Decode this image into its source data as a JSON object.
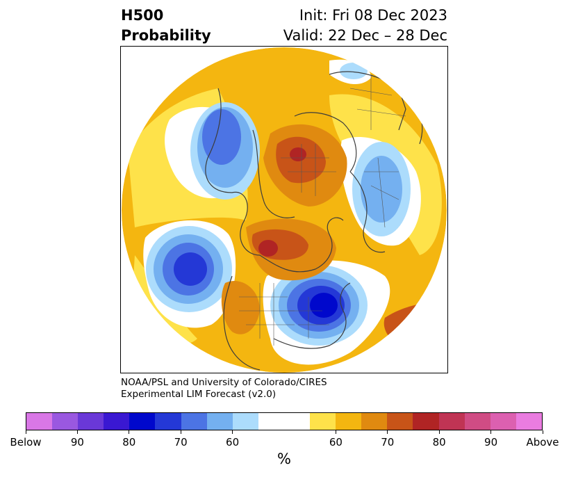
{
  "title": {
    "left_line1": "H500",
    "left_line2": "Probability",
    "right_line1": "Init: Fri 08 Dec 2023",
    "right_line2": "Valid: 22 Dec – 28 Dec"
  },
  "credit": {
    "line1": "NOAA/PSL and University of Colorado/CIRES",
    "line2": "Experimental LIM Forecast (v2.0)"
  },
  "colorbar": {
    "unit": "%",
    "below_colors": [
      "#d977e6",
      "#9a58e0",
      "#6a38d8",
      "#3a18d2",
      "#0008cc",
      "#2438d6",
      "#4c74e4",
      "#74b0f0",
      "#acdcfc"
    ],
    "neutral_color": "#ffffff",
    "above_colors": [
      "#fee24a",
      "#f4b610",
      "#e08a10",
      "#c85418",
      "#b02424",
      "#c03454",
      "#d04c84",
      "#dc60b0",
      "#ea7ce0"
    ],
    "tick_labels": [
      "Below",
      "90",
      "80",
      "70",
      "60",
      "60",
      "70",
      "80",
      "90",
      "Above"
    ]
  }
}
